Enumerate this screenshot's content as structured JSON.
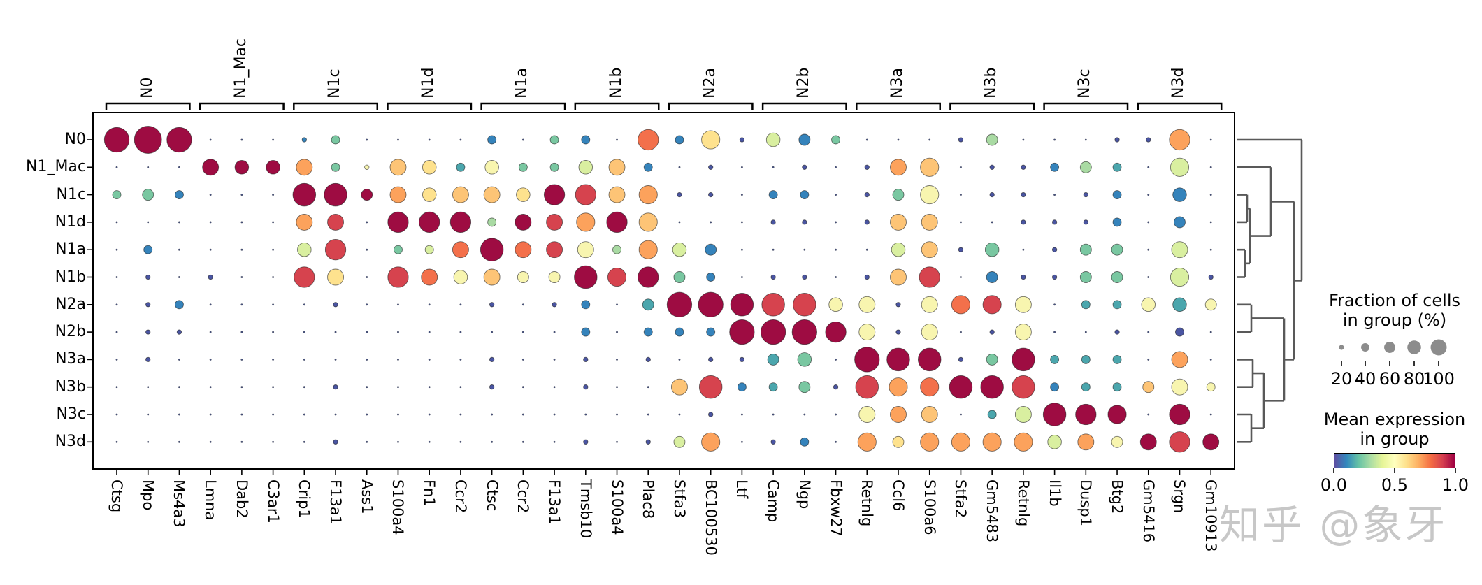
{
  "figure": {
    "watermark": "知乎 @象牙"
  },
  "legend": {
    "size_title_line1": "Fraction of cells",
    "size_title_line2": "in group (%)",
    "size_ticks": [
      20,
      40,
      60,
      80,
      100
    ],
    "color_title_line1": "Mean expression",
    "color_title_line2": "in group",
    "color_ticks": [
      "0.0",
      "0.5",
      "1.0"
    ],
    "dot_color": "#8c8c8c"
  },
  "chart_data": {
    "type": "heatmap",
    "subtype": "dotplot",
    "title": "",
    "xlabel": "",
    "ylabel": "",
    "grid": false,
    "rows": [
      "N0",
      "N1_Mac",
      "N1c",
      "N1d",
      "N1a",
      "N1b",
      "N2a",
      "N2b",
      "N3a",
      "N3b",
      "N3c",
      "N3d"
    ],
    "columns": [
      "Ctsg",
      "Mpo",
      "Ms4a3",
      "Lmna",
      "Dab2",
      "C3ar1",
      "Crip1",
      "F13a1",
      "Ass1",
      "S100a4",
      "Fn1",
      "Ccr2",
      "Ctsc",
      "Ccr2",
      "F13a1",
      "Tmsb10",
      "S100a4",
      "Plac8",
      "Stfa3",
      "BC100530",
      "Ltf",
      "Camp",
      "Ngp",
      "Fbxw27",
      "Retnlg",
      "Ccl6",
      "S100a6",
      "Stfa2",
      "Gm5483",
      "Retnlg",
      "Il1b",
      "Dusp1",
      "Btg2",
      "Gm5416",
      "Srgn",
      "Gm10913"
    ],
    "column_groups": [
      {
        "label": "N0",
        "cols": [
          1,
          3
        ]
      },
      {
        "label": "N1_Mac",
        "cols": [
          4,
          6
        ]
      },
      {
        "label": "N1c",
        "cols": [
          7,
          9
        ]
      },
      {
        "label": "N1d",
        "cols": [
          10,
          12
        ]
      },
      {
        "label": "N1a",
        "cols": [
          13,
          15
        ]
      },
      {
        "label": "N1b",
        "cols": [
          16,
          18
        ]
      },
      {
        "label": "N2a",
        "cols": [
          19,
          21
        ]
      },
      {
        "label": "N2b",
        "cols": [
          22,
          24
        ]
      },
      {
        "label": "N3a",
        "cols": [
          25,
          27
        ]
      },
      {
        "label": "N3b",
        "cols": [
          28,
          30
        ]
      },
      {
        "label": "N3c",
        "cols": [
          31,
          33
        ]
      },
      {
        "label": "N3d",
        "cols": [
          34,
          36
        ]
      }
    ],
    "cell_encoding": {
      "note": "each cell token = color letter + size digit; size digit d ~ fraction of cells = d*10% (X=100%, 0=<5%); color letter maps to mean expression 0-1 on Spectral_r",
      "palette": {
        ".": {
          "hex": "#47527e",
          "value": 0.02
        },
        "n": {
          "hex": "#4a55a2",
          "value": 0.05
        },
        "b": {
          "hex": "#3583bb",
          "value": 0.15
        },
        "t": {
          "hex": "#4ba6ad",
          "value": 0.22
        },
        "g": {
          "hex": "#79c7a1",
          "value": 0.3
        },
        "l": {
          "hex": "#a9daa3",
          "value": 0.35
        },
        "y": {
          "hex": "#d9efa0",
          "value": 0.42
        },
        "p": {
          "hex": "#f8f5af",
          "value": 0.5
        },
        "e": {
          "hex": "#fee28e",
          "value": 0.58
        },
        "o": {
          "hex": "#fdc476",
          "value": 0.65
        },
        "O": {
          "hex": "#fca25c",
          "value": 0.72
        },
        "r": {
          "hex": "#f3704b",
          "value": 0.8
        },
        "c": {
          "hex": "#d6434e",
          "value": 0.9
        },
        "d": {
          "hex": "#9e0c42",
          "value": 1.0
        }
      },
      "size_radius_px": {
        "0": 1.3,
        "1": 3.2,
        "2": 6,
        "3": 8,
        "4": 9.8,
        "5": 11.5,
        "6": 13.1,
        "7": 14.7,
        "8": 16.3,
        "9": 17.7,
        "X": 19.5
      }
    },
    "cells": [
      "d9 dX d9 .0 .0 .0 b1 g2 .0 .0 .0 .0 b2 .0 g2 b2 .0 r7 b2 e6 n1 y4 b3 g2 .0 .0 .0 n1 l3 .0 .0 .0 n1 n1 O7 .0",
      ".0 .0 .0 d5 d4 d4 O5 g2 p1 o5 e4 t2 p4 g2 g2 y4 o5 b2 .0 n1 .0 .0 n1 .0 n1 O5 o6 .0 n1 n1 b2 l3 t2 .0 y6 .0",
      "g2 g3 b2 .0 .0 .0 d8 d8 d3 O5 e4 o5 o5 e4 d7 c7 o5 O6 n1 n1 .0 b2 b2 .0 n1 g3 p6 .0 n1 n1 .0 n1 b2 .0 b4 .0",
      ".0 .0 .0 .0 .0 .0 O5 c5 .0 d7 d7 d7 l2 d5 c5 O6 d7 o6 .0 .0 .0 n1 n1 .0 n1 o5 o5 .0 .0 n1 n1 n1 b2 .0 b3 .0",
      ".0 b2 .0 .0 .0 .0 y4 c7 .0 g2 y2 r5 d8 r5 c5 p5 l2 O6 y4 b3 .0 .0 .0 .0 .0 y4 o5 n1 g4 .0 n1 g3 g3 .0 y5 .0",
      ".0 n1 .0 n1 .0 .0 c7 e5 .0 c7 r5 p4 o5 p3 p3 d8 c6 d7 g3 b2 .0 n1 n1 .0 n1 o5 c7 .0 b3 n1 n1 g3 g3 .0 y6 n1",
      ".0 n1 b2 .0 .0 .0 .0 n1 .0 .0 .0 .0 n1 .0 n1 b2 .0 t3 d9 d9 d8 c8 c8 p4 p5 n1 p5 r6 c6 p5 .0 t2 t2 p4 t4 p3",
      ".0 n1 n1 .0 .0 .0 .0 .0 .0 .0 .0 .0 .0 .0 .0 b2 .0 b2 b2 b2 d9 d9 d9 d7 p5 n1 p5 .0 n1 p5 .0 .0 n1 .0 n2 .0",
      ".0 n1 .0 .0 .0 .0 .0 .0 .0 .0 .0 .0 n1 .0 .0 n1 .0 n1 .0 n1 n1 t3 g4 .0 d9 d8 d8 n1 g3 d8 t2 t2 t2 .0 O5 .0",
      ".0 .0 .0 .0 .0 .0 .0 n1 .0 .0 .0 .0 n1 .0 .0 n1 .0 .0 o5 c8 b2 t2 g3 n1 c8 O6 r6 d8 d8 c8 b2 t2 t2 o3 p5 p2",
      ".0 .0 .0 .0 .0 .0 .0 .0 .0 .0 .0 .0 .0 .0 .0 .0 .0 .0 .0 n1 .0 .0 .0 .0 p5 O5 o5 .0 t2 y5 d8 d7 d6 .0 d7 .0",
      ".0 .0 .0 .0 .0 .0 .0 n1 .0 .0 .0 .0 .0 .0 .0 n1 .0 n1 y3 O6 .0 n1 b2 .0 O6 e3 O6 O6 O6 O6 y4 O5 p3 d5 c7 d5"
    ],
    "colorbar_stops": [
      "#5e4fa2",
      "#3288bd",
      "#66c2a5",
      "#abdda4",
      "#e6f598",
      "#ffffbf",
      "#fee08b",
      "#fdae61",
      "#f46d43",
      "#d53e4f",
      "#9e0142"
    ],
    "dendrogram": {
      "side": "right",
      "line_color": "#595959",
      "links": [
        {
          "id": "A",
          "children": [
            "N1c",
            "N1d"
          ],
          "dist": 15
        },
        {
          "id": "B",
          "children": [
            "N1a",
            "N1b"
          ],
          "dist": 12
        },
        {
          "id": "C",
          "children": [
            "A",
            "B"
          ],
          "dist": 19
        },
        {
          "id": "D",
          "children": [
            "N1_Mac",
            "C"
          ],
          "dist": 49
        },
        {
          "id": "F",
          "children": [
            "N2a",
            "N2b"
          ],
          "dist": 21
        },
        {
          "id": "G",
          "children": [
            "N3a",
            "N3b"
          ],
          "dist": 23
        },
        {
          "id": "H",
          "children": [
            "N3c",
            "N3d"
          ],
          "dist": 21
        },
        {
          "id": "I",
          "children": [
            "G",
            "H"
          ],
          "dist": 39
        },
        {
          "id": "J",
          "children": [
            "F",
            "I"
          ],
          "dist": 68
        },
        {
          "id": "M",
          "children": [
            "D",
            "J"
          ],
          "dist": 82
        },
        {
          "id": "ROOT",
          "children": [
            "N0",
            "M"
          ],
          "dist": 93
        }
      ]
    }
  }
}
